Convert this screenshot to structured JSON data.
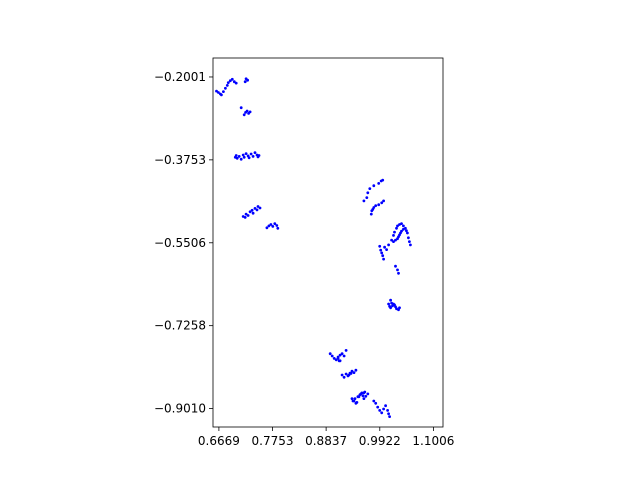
{
  "chart_data": {
    "type": "scatter",
    "title": "",
    "xlabel": "",
    "ylabel": "",
    "xlim": [
      0.655,
      1.12
    ],
    "ylim": [
      -0.94,
      -0.16
    ],
    "xticks": [
      0.6669,
      0.7753,
      0.8837,
      0.9922,
      1.1006
    ],
    "xtick_labels": [
      "0.6669",
      "0.7753",
      "0.8837",
      "0.9922",
      "1.1006"
    ],
    "yticks": [
      -0.2001,
      -0.3753,
      -0.5506,
      -0.7258,
      -0.901
    ],
    "ytick_labels": [
      "−0.2001",
      "−0.3753",
      "−0.5506",
      "−0.7258",
      "−0.9010"
    ],
    "grid": false,
    "legend": "none",
    "marker_color": "#0000ff",
    "series": [
      {
        "x": [
          0.662,
          0.666,
          0.67,
          0.672,
          0.676,
          0.68,
          0.684,
          0.686,
          0.69,
          0.694,
          0.698,
          0.702,
          0.72,
          0.722,
          0.725,
          0.712,
          0.718,
          0.721,
          0.724,
          0.727,
          0.73,
          0.7,
          0.702,
          0.704,
          0.708,
          0.712,
          0.716,
          0.718,
          0.722,
          0.726,
          0.728,
          0.732,
          0.736,
          0.74,
          0.744,
          0.746,
          0.748,
          0.716,
          0.72,
          0.722,
          0.726,
          0.73,
          0.734,
          0.736,
          0.74,
          0.744,
          0.746,
          0.75,
          0.764,
          0.768,
          0.772,
          0.776,
          0.78,
          0.784,
          0.786,
          0.908,
          0.912,
          0.916,
          0.92,
          0.924,
          0.93,
          0.934,
          0.936,
          0.94,
          0.944,
          0.938,
          0.942,
          0.946,
          0.95,
          0.954,
          0.958,
          0.96,
          0.962,
          0.96,
          0.966,
          0.968,
          0.972,
          0.98,
          0.99,
          0.995,
          0.998,
          0.975,
          0.976,
          0.978,
          0.98,
          0.984,
          0.99,
          0.996,
          1.0,
          0.992,
          0.994,
          0.996,
          0.998,
          1.0,
          1.002,
          1.006,
          1.01,
          1.016,
          1.02,
          1.022,
          1.026,
          1.028,
          1.032,
          1.036,
          1.04,
          1.044,
          1.046,
          1.048,
          1.05,
          1.052,
          1.054,
          1.02,
          1.024,
          1.028,
          1.03,
          1.032,
          1.034,
          1.036,
          1.04,
          1.024,
          1.028,
          1.03,
          1.014,
          1.016,
          1.01,
          1.012,
          1.014,
          1.018,
          1.02,
          1.022,
          1.024,
          1.026,
          1.03,
          1.032,
          0.892,
          0.896,
          0.9,
          0.904,
          0.908,
          0.91,
          0.912,
          0.916,
          0.92,
          0.924,
          0.928,
          0.932,
          0.936,
          0.94,
          0.944,
          0.948,
          0.952,
          0.956,
          0.96,
          0.964,
          0.968,
          0.98,
          0.984,
          0.988,
          0.992,
          0.996,
          1.0,
          1.004,
          1.008,
          1.01,
          1.012
        ],
        "y": [
          -0.23,
          -0.233,
          -0.236,
          -0.238,
          -0.231,
          -0.224,
          -0.218,
          -0.212,
          -0.208,
          -0.205,
          -0.21,
          -0.213,
          -0.21,
          -0.204,
          -0.207,
          -0.265,
          -0.28,
          -0.275,
          -0.272,
          -0.277,
          -0.274,
          -0.37,
          -0.366,
          -0.372,
          -0.368,
          -0.374,
          -0.365,
          -0.37,
          -0.362,
          -0.367,
          -0.371,
          -0.363,
          -0.368,
          -0.36,
          -0.365,
          -0.369,
          -0.366,
          -0.495,
          -0.497,
          -0.49,
          -0.493,
          -0.485,
          -0.482,
          -0.488,
          -0.478,
          -0.481,
          -0.474,
          -0.477,
          -0.519,
          -0.515,
          -0.512,
          -0.516,
          -0.51,
          -0.514,
          -0.52,
          -0.795,
          -0.8,
          -0.785,
          -0.79,
          -0.778,
          -0.83,
          -0.827,
          -0.822,
          -0.825,
          -0.82,
          -0.885,
          -0.88,
          -0.888,
          -0.876,
          -0.87,
          -0.874,
          -0.868,
          -0.866,
          -0.462,
          -0.455,
          -0.445,
          -0.436,
          -0.43,
          -0.425,
          -0.42,
          -0.418,
          -0.49,
          -0.483,
          -0.48,
          -0.476,
          -0.472,
          -0.47,
          -0.466,
          -0.462,
          -0.558,
          -0.566,
          -0.572,
          -0.578,
          -0.585,
          -0.56,
          -0.565,
          -0.555,
          -0.545,
          -0.535,
          -0.528,
          -0.52,
          -0.515,
          -0.512,
          -0.51,
          -0.515,
          -0.52,
          -0.525,
          -0.53,
          -0.54,
          -0.548,
          -0.555,
          -0.548,
          -0.545,
          -0.542,
          -0.538,
          -0.534,
          -0.53,
          -0.526,
          -0.522,
          -0.6,
          -0.608,
          -0.615,
          -0.672,
          -0.678,
          -0.68,
          -0.685,
          -0.688,
          -0.684,
          -0.68,
          -0.682,
          -0.686,
          -0.69,
          -0.692,
          -0.688,
          -0.785,
          -0.79,
          -0.795,
          -0.798,
          -0.792,
          -0.8,
          -0.788,
          -0.83,
          -0.835,
          -0.828,
          -0.832,
          -0.826,
          -0.88,
          -0.885,
          -0.89,
          -0.876,
          -0.872,
          -0.868,
          -0.88,
          -0.875,
          -0.87,
          -0.885,
          -0.89,
          -0.898,
          -0.905,
          -0.91,
          -0.902,
          -0.895,
          -0.905,
          -0.912,
          -0.918
        ]
      }
    ]
  }
}
